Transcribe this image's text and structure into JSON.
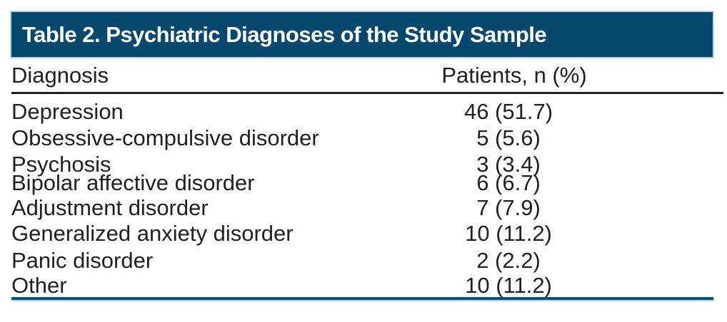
{
  "table": {
    "title": "Table 2. Psychiatric Diagnoses of the Study Sample",
    "columns": {
      "diagnosis": "Diagnosis",
      "patients": "Patients, n (%)"
    },
    "rows": [
      {
        "diagnosis": "Depression",
        "patients": "46 (51.7)"
      },
      {
        "diagnosis": "Obsessive-compulsive disorder",
        "patients": "5 (5.6)"
      },
      {
        "diagnosis": "Psychosis",
        "patients": "3 (3.4)"
      },
      {
        "diagnosis": "Bipolar affective disorder",
        "patients": "6 (6.7)"
      },
      {
        "diagnosis": "Adjustment disorder",
        "patients": "7 (7.9)"
      },
      {
        "diagnosis": "Generalized anxiety disorder",
        "patients": "10 (11.2)"
      },
      {
        "diagnosis": "Panic disorder",
        "patients": "2 (2.2)"
      },
      {
        "diagnosis": "Other",
        "patients": "10 (11.2)"
      }
    ]
  },
  "colors": {
    "banner_background": "#06486e",
    "banner_border": "#b9d4e7",
    "banner_text": "#ffffff",
    "body_text": "#231f20",
    "header_rule": "#231f20",
    "bottom_rule": "#0b527b",
    "bottom_rule_accent": "#b9d4e7"
  },
  "chart_data": {
    "type": "table",
    "title": "Table 2. Psychiatric Diagnoses of the Study Sample",
    "columns": [
      "Diagnosis",
      "Patients, n (%)"
    ],
    "rows": [
      [
        "Depression",
        "46 (51.7)"
      ],
      [
        "Obsessive-compulsive disorder",
        "5 (5.6)"
      ],
      [
        "Psychosis",
        "3 (3.4)"
      ],
      [
        "Bipolar affective disorder",
        "6 (6.7)"
      ],
      [
        "Adjustment disorder",
        "7 (7.9)"
      ],
      [
        "Generalized anxiety disorder",
        "10 (11.2)"
      ],
      [
        "Panic disorder",
        "2 (2.2)"
      ],
      [
        "Other",
        "10 (11.2)"
      ]
    ]
  }
}
